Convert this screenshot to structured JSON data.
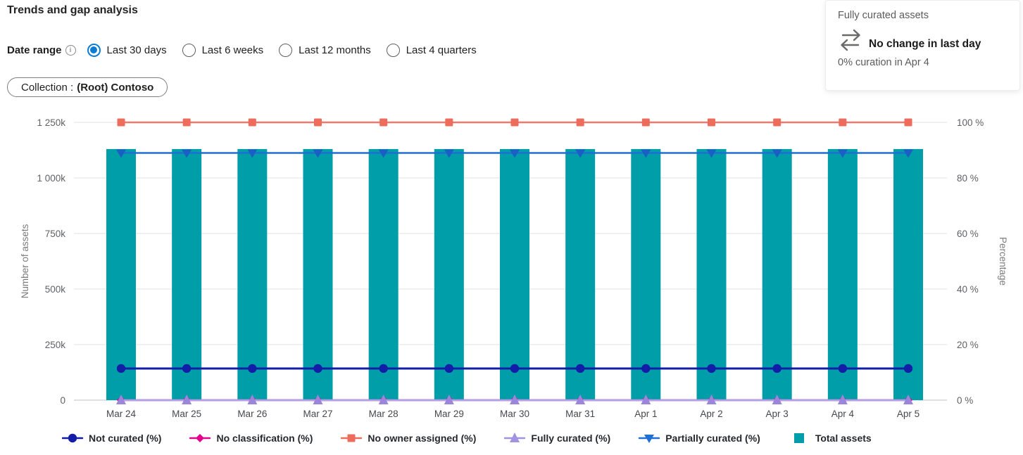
{
  "header": {
    "title": "Trends and gap analysis"
  },
  "date_range": {
    "label": "Date range",
    "info_icon": "info-icon",
    "options": [
      {
        "label": "Last 30 days",
        "selected": true
      },
      {
        "label": "Last 6 weeks",
        "selected": false
      },
      {
        "label": "Last 12 months",
        "selected": false
      },
      {
        "label": "Last 4 quarters",
        "selected": false
      }
    ]
  },
  "filter": {
    "prefix": "Collection :",
    "value": "(Root) Contoso"
  },
  "card": {
    "title": "Fully curated assets",
    "icon": "swap-arrows-icon",
    "status": "No change in last day",
    "subtext": "0% curation in Apr 4"
  },
  "legend": {
    "items": [
      {
        "label": "Not curated (%)",
        "marker": "circle",
        "color": "#131da8"
      },
      {
        "label": "No classification (%)",
        "marker": "diamond",
        "color": "#e3008c"
      },
      {
        "label": "No owner assigned (%)",
        "marker": "square",
        "color": "#ed6c5b"
      },
      {
        "label": "Fully curated (%)",
        "marker": "triangle-up",
        "color": "#a193df"
      },
      {
        "label": "Partially curated (%)",
        "marker": "triangle-down",
        "color": "#1f6fd4"
      },
      {
        "label": "Total assets",
        "marker": "rect",
        "color": "#009ea8"
      }
    ]
  },
  "chart_data": {
    "type": "combo-bar-line",
    "categories": [
      "Mar 24",
      "Mar 25",
      "Mar 26",
      "Mar 27",
      "Mar 28",
      "Mar 29",
      "Mar 30",
      "Mar 31",
      "Apr 1",
      "Apr 2",
      "Apr 3",
      "Apr 4",
      "Apr 5"
    ],
    "left_axis": {
      "title": "Number of assets",
      "max": 1250000,
      "ticks": [
        0,
        250000,
        500000,
        750000,
        1000000,
        1250000
      ],
      "tick_labels": [
        "0",
        "250k",
        "500k",
        "750k",
        "1 000k",
        "1 250k"
      ]
    },
    "right_axis": {
      "title": "Percentage",
      "max": 100,
      "ticks": [
        0,
        20,
        40,
        60,
        80,
        100
      ],
      "tick_labels": [
        "0 %",
        "20 %",
        "40 %",
        "60 %",
        "80 %",
        "100 %"
      ]
    },
    "grid": true,
    "legend_position": "bottom",
    "series": [
      {
        "name": "Total assets",
        "type": "bar",
        "axis": "left",
        "color": "#009ea8",
        "values": [
          1130000,
          1130000,
          1130000,
          1130000,
          1130000,
          1130000,
          1130000,
          1130000,
          1130000,
          1130000,
          1130000,
          1130000,
          1130000
        ]
      },
      {
        "name": "No owner assigned (%)",
        "type": "line",
        "axis": "right",
        "color": "#f0796e",
        "marker": "square",
        "marker_color": "#ed6c5b",
        "values": [
          100,
          100,
          100,
          100,
          100,
          100,
          100,
          100,
          100,
          100,
          100,
          100,
          100
        ]
      },
      {
        "name": "Partially curated (%)",
        "type": "line",
        "axis": "right",
        "color": "#1f6fd4",
        "marker": "triangle-down",
        "marker_color": "#1a5fc4",
        "values": [
          89,
          89,
          89,
          89,
          89,
          89,
          89,
          89,
          89,
          89,
          89,
          89,
          89
        ]
      },
      {
        "name": "Not curated (%)",
        "type": "line",
        "axis": "right",
        "color": "#131da8",
        "marker": "circle",
        "marker_color": "#131da8",
        "values": [
          11.4,
          11.4,
          11.4,
          11.4,
          11.4,
          11.4,
          11.4,
          11.4,
          11.4,
          11.4,
          11.4,
          11.4,
          11.4
        ]
      },
      {
        "name": "No classification (%)",
        "type": "line",
        "axis": "right",
        "color": "#e3008c",
        "marker": "diamond",
        "marker_color": "#e3008c",
        "values": [
          0,
          0,
          0,
          0,
          0,
          0,
          0,
          0,
          0,
          0,
          0,
          0,
          0
        ]
      },
      {
        "name": "Fully curated (%)",
        "type": "line",
        "axis": "right",
        "color": "#aca0e6",
        "marker": "triangle-up",
        "marker_color": "#9c86db",
        "values": [
          0,
          0,
          0,
          0,
          0,
          0,
          0,
          0,
          0,
          0,
          0,
          0,
          0
        ]
      }
    ]
  }
}
